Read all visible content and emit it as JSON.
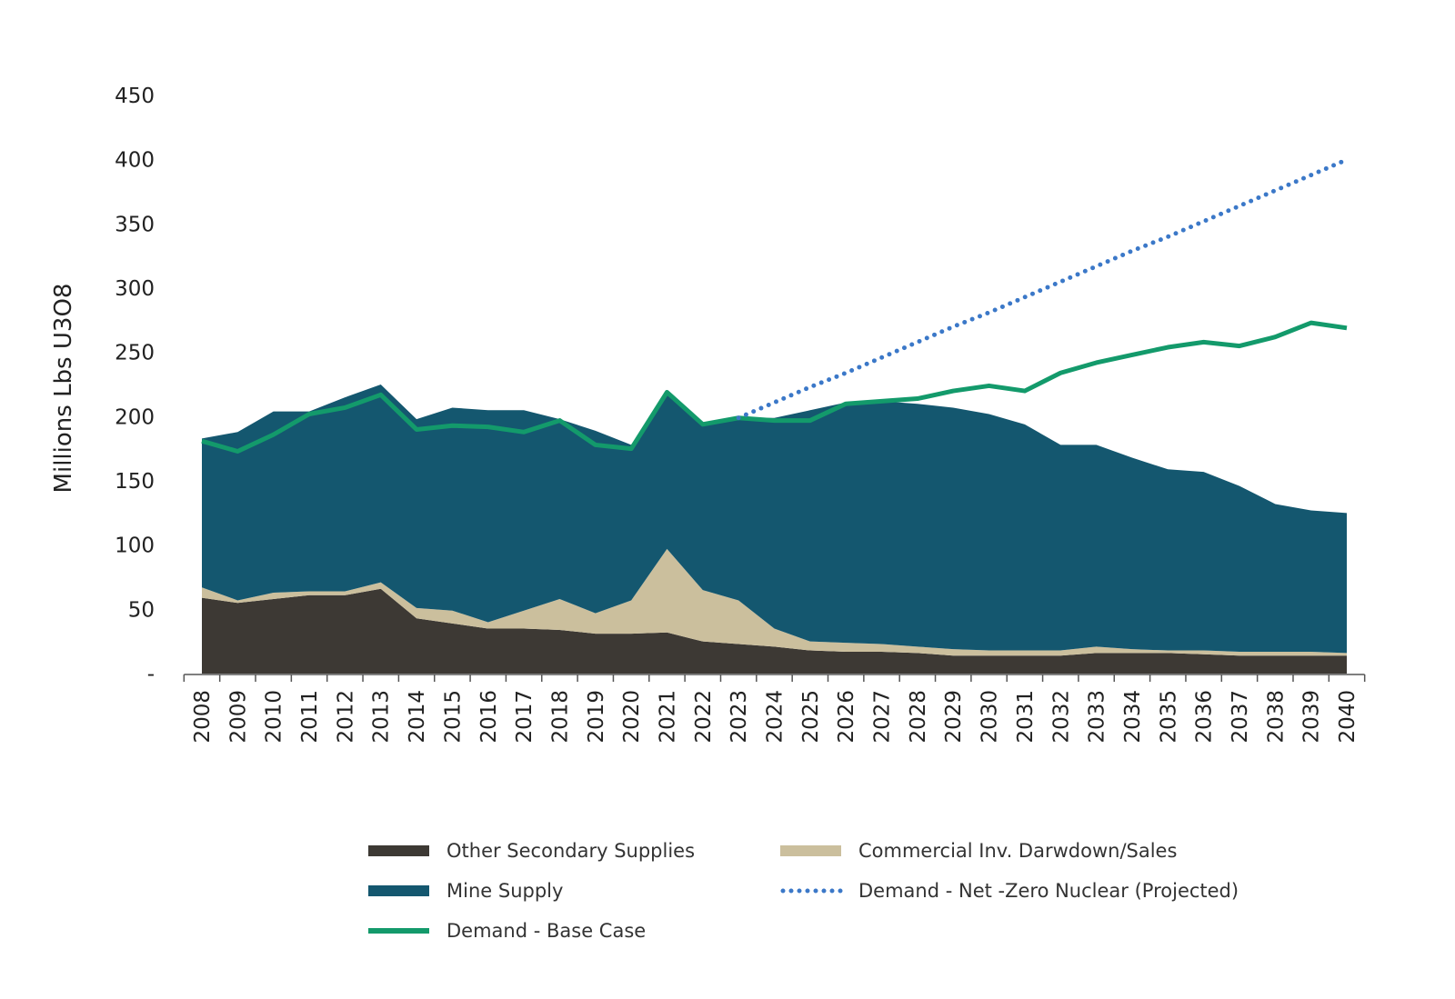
{
  "chart_data": {
    "type": "area",
    "title": "",
    "xlabel": "",
    "ylabel": "Millions Lbs U3O8",
    "ylim": [
      0,
      450
    ],
    "yticks": [
      0,
      50,
      100,
      150,
      200,
      250,
      300,
      350,
      400,
      450
    ],
    "ytick_labels": [
      "-",
      "50",
      "100",
      "150",
      "200",
      "250",
      "300",
      "350",
      "400",
      "450"
    ],
    "x": [
      "2008",
      "2009",
      "2010",
      "2011",
      "2012",
      "2013",
      "2014",
      "2015",
      "2016",
      "2017",
      "2018",
      "2019",
      "2020",
      "2021",
      "2022",
      "2023",
      "2024",
      "2025",
      "2026",
      "2027",
      "2028",
      "2029",
      "2030",
      "2031",
      "2032",
      "2033",
      "2034",
      "2035",
      "2036",
      "2037",
      "2038",
      "2039",
      "2040"
    ],
    "stacked_series": [
      {
        "name": "Other Secondary Supplies",
        "color": "#3d3934",
        "values": [
          59,
          55,
          58,
          61,
          61,
          66,
          43,
          39,
          35,
          35,
          34,
          31,
          31,
          32,
          25,
          23,
          21,
          18,
          17,
          17,
          16,
          14,
          14,
          14,
          14,
          16,
          16,
          16,
          15,
          14,
          14,
          14,
          14
        ]
      },
      {
        "name": "Commercial Inv. Darwdown/Sales",
        "color": "#cbbf9d",
        "values": [
          8,
          2,
          5,
          3,
          3,
          5,
          8,
          10,
          5,
          14,
          24,
          16,
          26,
          65,
          40,
          34,
          14,
          7,
          7,
          6,
          5,
          5,
          4,
          4,
          4,
          5,
          3,
          2,
          3,
          3,
          3,
          3,
          2
        ]
      },
      {
        "name": "Mine Supply",
        "color": "#14576f",
        "values": [
          116,
          131,
          141,
          140,
          151,
          154,
          147,
          158,
          165,
          156,
          140,
          142,
          121,
          123,
          130,
          142,
          164,
          180,
          187,
          189,
          189,
          188,
          184,
          176,
          160,
          157,
          149,
          141,
          139,
          129,
          115,
          110,
          109
        ]
      }
    ],
    "line_series": [
      {
        "name": "Demand - Base Case",
        "color": "#139a6b",
        "style": "solid",
        "x_start": "2008",
        "values": [
          181,
          173,
          186,
          202,
          207,
          217,
          190,
          193,
          192,
          188,
          197,
          178,
          175,
          219,
          194,
          199,
          197,
          197,
          210,
          212,
          214,
          220,
          224,
          220,
          234,
          242,
          248,
          254,
          258,
          255,
          262,
          273,
          269
        ]
      },
      {
        "name": "Demand - Net -Zero Nuclear (Projected)",
        "color": "#3b78c8",
        "style": "dotted",
        "x_start": "2023",
        "values": [
          199,
          211,
          223,
          234,
          246,
          258,
          270,
          281,
          293,
          305,
          317,
          329,
          340,
          352,
          364,
          376,
          388,
          400
        ]
      }
    ],
    "legend": {
      "placement": "bottom",
      "items": [
        "Other Secondary Supplies",
        "Commercial Inv. Darwdown/Sales",
        "Mine Supply",
        "Demand - Net -Zero Nuclear (Projected)",
        "Demand - Base Case"
      ]
    },
    "grid": false
  }
}
